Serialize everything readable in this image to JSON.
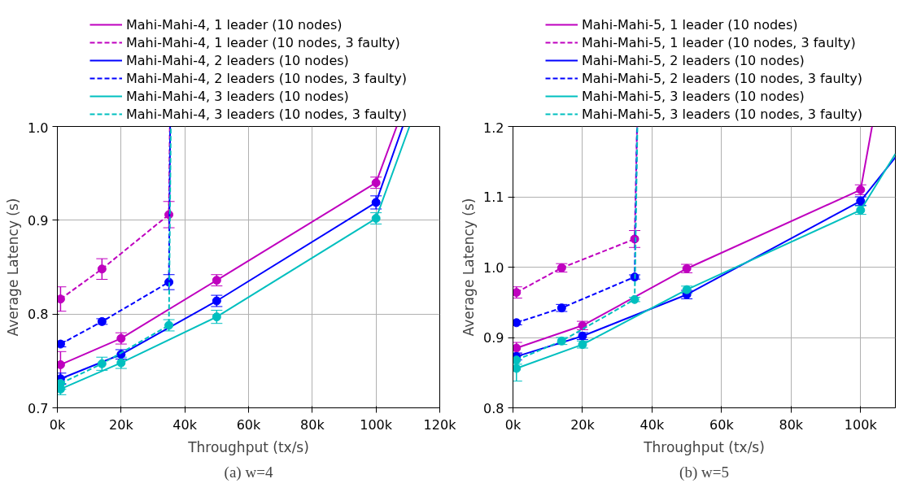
{
  "chart_data": [
    {
      "type": "line",
      "xlabel": "Throughput (tx/s)",
      "ylabel": "Average Latency (s)",
      "annotations": [
        "(a) w=4"
      ],
      "legend": "top",
      "grid": true,
      "marker": "circle",
      "xlim": [
        0,
        120000
      ],
      "xticks": [
        {
          "value": 0,
          "label": "0k"
        },
        {
          "value": 20000,
          "label": "20k"
        },
        {
          "value": 40000,
          "label": "40k"
        },
        {
          "value": 60000,
          "label": "60k"
        },
        {
          "value": 80000,
          "label": "80k"
        },
        {
          "value": 100000,
          "label": "100k"
        },
        {
          "value": 120000,
          "label": "120k"
        }
      ],
      "ylim": [
        0.7,
        1.0
      ],
      "yticks": [
        0.7,
        0.8,
        0.9,
        {
          "value": 1.0,
          "label": "1.0"
        }
      ],
      "series": [
        {
          "name": "Mahi-Mahi-4, 1 leader (10 nodes)",
          "color": "#bf00bf",
          "line_style": "solid",
          "x": [
            1000,
            20000,
            50000,
            100000,
            106500
          ],
          "values": [
            0.746,
            0.774,
            0.836,
            0.94,
            1.0
          ],
          "errors": [
            0.014,
            0.006,
            0.006,
            0.006,
            null
          ]
        },
        {
          "name": "Mahi-Mahi-4, 1 leader (10 nodes, 3 faulty)",
          "color": "#bf00bf",
          "line_style": "dashed",
          "x": [
            1000,
            14000,
            35000,
            35300
          ],
          "values": [
            0.816,
            0.848,
            0.906,
            1.0
          ],
          "errors": [
            0.013,
            0.011,
            0.014,
            null
          ]
        },
        {
          "name": "Mahi-Mahi-4, 2 leaders (10 nodes)",
          "color": "#0000ff",
          "line_style": "solid",
          "x": [
            1000,
            20000,
            50000,
            100000,
            108400
          ],
          "values": [
            0.731,
            0.757,
            0.814,
            0.919,
            1.0
          ],
          "errors": [
            0.006,
            0.005,
            0.006,
            0.007,
            null
          ]
        },
        {
          "name": "Mahi-Mahi-4, 2 leaders (10 nodes, 3 faulty)",
          "color": "#0000ff",
          "line_style": "dashed",
          "x": [
            1000,
            14000,
            35000,
            35400
          ],
          "values": [
            0.768,
            0.792,
            0.834,
            1.0
          ],
          "errors": [
            0.003,
            0.003,
            0.008,
            null
          ]
        },
        {
          "name": "Mahi-Mahi-4, 3 leaders (10 nodes)",
          "color": "#00bfbf",
          "line_style": "solid",
          "x": [
            1000,
            20000,
            50000,
            100000,
            110500
          ],
          "values": [
            0.72,
            0.748,
            0.797,
            0.902,
            1.0
          ],
          "errors": [
            0.006,
            0.006,
            0.007,
            0.006,
            null
          ]
        },
        {
          "name": "Mahi-Mahi-4, 3 leaders (10 nodes, 3 faulty)",
          "color": "#00bfbf",
          "line_style": "dashed",
          "x": [
            1000,
            14000,
            35000,
            35600
          ],
          "values": [
            0.726,
            0.747,
            0.788,
            1.0
          ],
          "errors": [
            0.006,
            0.007,
            0.006,
            null
          ]
        }
      ]
    },
    {
      "type": "line",
      "xlabel": "Throughput (tx/s)",
      "ylabel": "Average Latency (s)",
      "annotations": [
        "(b) w=5"
      ],
      "legend": "top",
      "grid": true,
      "marker": "circle",
      "xlim": [
        0,
        110000
      ],
      "xticks": [
        {
          "value": 0,
          "label": "0k"
        },
        {
          "value": 20000,
          "label": "20k"
        },
        {
          "value": 40000,
          "label": "40k"
        },
        {
          "value": 60000,
          "label": "60k"
        },
        {
          "value": 80000,
          "label": "80k"
        },
        {
          "value": 100000,
          "label": "100k"
        }
      ],
      "ylim": [
        0.8,
        1.2
      ],
      "yticks": [
        0.8,
        0.9,
        {
          "value": 1.0,
          "label": "1.0"
        },
        1.1,
        1.2
      ],
      "series": [
        {
          "name": "Mahi-Mahi-5, 1 leader (10 nodes)",
          "color": "#bf00bf",
          "line_style": "solid",
          "x": [
            1000,
            20000,
            50000,
            100000,
            103300
          ],
          "values": [
            0.885,
            0.917,
            0.998,
            1.11,
            1.2
          ],
          "errors": [
            0.008,
            0.006,
            0.006,
            0.007,
            null
          ]
        },
        {
          "name": "Mahi-Mahi-5, 1 leader (10 nodes, 3 faulty)",
          "color": "#bf00bf",
          "line_style": "dashed",
          "x": [
            1000,
            14000,
            35000,
            35700
          ],
          "values": [
            0.964,
            0.999,
            1.04,
            1.2
          ],
          "errors": [
            0.008,
            0.006,
            0.012,
            null
          ]
        },
        {
          "name": "Mahi-Mahi-5, 2 leaders (10 nodes)",
          "color": "#0000ff",
          "line_style": "solid",
          "x": [
            1000,
            20000,
            50000,
            100000,
            110000
          ],
          "values": [
            0.873,
            0.902,
            0.961,
            1.094,
            1.156
          ],
          "errors": [
            0.005,
            0.005,
            0.006,
            0.006,
            null
          ]
        },
        {
          "name": "Mahi-Mahi-5, 2 leaders (10 nodes, 3 faulty)",
          "color": "#0000ff",
          "line_style": "dashed",
          "x": [
            1000,
            14000,
            35000,
            35700
          ],
          "values": [
            0.921,
            0.942,
            0.986,
            1.2
          ],
          "errors": [
            0.003,
            0.005,
            0.003,
            null
          ]
        },
        {
          "name": "Mahi-Mahi-5, 3 leaders (10 nodes)",
          "color": "#00bfbf",
          "line_style": "solid",
          "x": [
            1000,
            20000,
            50000,
            100000,
            110000
          ],
          "values": [
            0.856,
            0.89,
            0.968,
            1.081,
            1.161
          ],
          "errors": [
            0.018,
            0.005,
            0.005,
            0.006,
            null
          ]
        },
        {
          "name": "Mahi-Mahi-5, 3 leaders (10 nodes, 3 faulty)",
          "color": "#00bfbf",
          "line_style": "dashed",
          "x": [
            1000,
            14000,
            35000,
            35800
          ],
          "values": [
            0.868,
            0.895,
            0.954,
            1.2
          ],
          "errors": [
            0.006,
            0.005,
            0.003,
            null
          ]
        }
      ]
    }
  ]
}
